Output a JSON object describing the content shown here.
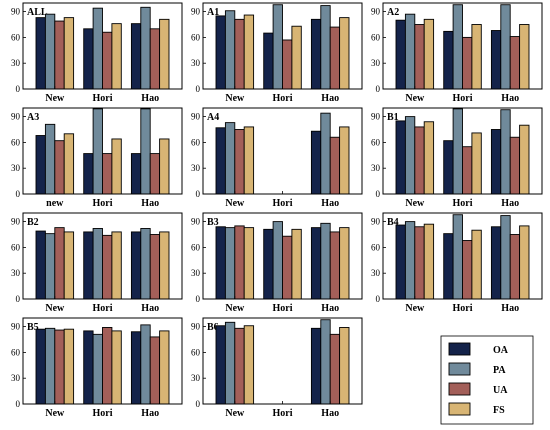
{
  "figure": {
    "yticks": [
      0,
      30,
      60,
      90
    ],
    "series_names": [
      "OA",
      "PA",
      "UA",
      "FS"
    ],
    "colors": {
      "OA": "#14234a",
      "PA": "#708a9b",
      "UA": "#a35f59",
      "FS": "#d8b574"
    }
  },
  "chart_data": [
    {
      "type": "bar",
      "title": "ALL",
      "categories": [
        "New",
        "Hori",
        "Hao"
      ],
      "ylim": [
        0,
        100
      ],
      "series": [
        {
          "name": "OA",
          "values": [
            83,
            70,
            76
          ]
        },
        {
          "name": "PA",
          "values": [
            87,
            94,
            95
          ]
        },
        {
          "name": "UA",
          "values": [
            79,
            66,
            70
          ]
        },
        {
          "name": "FS",
          "values": [
            83,
            76,
            81
          ]
        }
      ]
    },
    {
      "type": "bar",
      "title": "A1",
      "categories": [
        "New",
        "Hori",
        "Hao"
      ],
      "ylim": [
        0,
        100
      ],
      "series": [
        {
          "name": "OA",
          "values": [
            85,
            65,
            81
          ]
        },
        {
          "name": "PA",
          "values": [
            91,
            98,
            97
          ]
        },
        {
          "name": "UA",
          "values": [
            81,
            57,
            72
          ]
        },
        {
          "name": "FS",
          "values": [
            86,
            73,
            83
          ]
        }
      ]
    },
    {
      "type": "bar",
      "title": "A2",
      "categories": [
        "New",
        "Hori",
        "Hao"
      ],
      "ylim": [
        0,
        100
      ],
      "series": [
        {
          "name": "OA",
          "values": [
            80,
            67,
            68
          ]
        },
        {
          "name": "PA",
          "values": [
            87,
            98,
            98
          ]
        },
        {
          "name": "UA",
          "values": [
            75,
            60,
            61
          ]
        },
        {
          "name": "FS",
          "values": [
            81,
            75,
            75
          ]
        }
      ]
    },
    {
      "type": "bar",
      "title": "A3",
      "categories": [
        "new",
        "Hori",
        "Hao"
      ],
      "ylim": [
        0,
        100
      ],
      "series": [
        {
          "name": "OA",
          "values": [
            68,
            47,
            47
          ]
        },
        {
          "name": "PA",
          "values": [
            81,
            99,
            99
          ]
        },
        {
          "name": "UA",
          "values": [
            62,
            47,
            47
          ]
        },
        {
          "name": "FS",
          "values": [
            70,
            64,
            64
          ]
        }
      ]
    },
    {
      "type": "bar",
      "title": "A4",
      "categories": [
        "New",
        "Hori",
        "Hao"
      ],
      "ylim": [
        0,
        100
      ],
      "series": [
        {
          "name": "OA",
          "values": [
            77,
            null,
            73
          ]
        },
        {
          "name": "PA",
          "values": [
            83,
            null,
            94
          ]
        },
        {
          "name": "UA",
          "values": [
            75,
            null,
            66
          ]
        },
        {
          "name": "FS",
          "values": [
            78,
            null,
            78
          ]
        }
      ]
    },
    {
      "type": "bar",
      "title": "B1",
      "categories": [
        "New",
        "Hori",
        "Hao"
      ],
      "ylim": [
        0,
        100
      ],
      "series": [
        {
          "name": "OA",
          "values": [
            85,
            62,
            75
          ]
        },
        {
          "name": "PA",
          "values": [
            90,
            99,
            98
          ]
        },
        {
          "name": "UA",
          "values": [
            78,
            55,
            66
          ]
        },
        {
          "name": "FS",
          "values": [
            84,
            71,
            80
          ]
        }
      ]
    },
    {
      "type": "bar",
      "title": "B2",
      "categories": [
        "New",
        "Hori",
        "Hao"
      ],
      "ylim": [
        0,
        100
      ],
      "series": [
        {
          "name": "OA",
          "values": [
            79,
            78,
            78
          ]
        },
        {
          "name": "PA",
          "values": [
            76,
            82,
            82
          ]
        },
        {
          "name": "UA",
          "values": [
            83,
            74,
            75
          ]
        },
        {
          "name": "FS",
          "values": [
            78,
            78,
            78
          ]
        }
      ]
    },
    {
      "type": "bar",
      "title": "B3",
      "categories": [
        "New",
        "Hori",
        "Hao"
      ],
      "ylim": [
        0,
        100
      ],
      "series": [
        {
          "name": "OA",
          "values": [
            84,
            81,
            83
          ]
        },
        {
          "name": "PA",
          "values": [
            83,
            90,
            88
          ]
        },
        {
          "name": "UA",
          "values": [
            85,
            73,
            78
          ]
        },
        {
          "name": "FS",
          "values": [
            83,
            81,
            83
          ]
        }
      ]
    },
    {
      "type": "bar",
      "title": "B4",
      "categories": [
        "New",
        "Hori",
        "Hao"
      ],
      "ylim": [
        0,
        100
      ],
      "series": [
        {
          "name": "OA",
          "values": [
            86,
            76,
            84
          ]
        },
        {
          "name": "PA",
          "values": [
            90,
            98,
            97
          ]
        },
        {
          "name": "UA",
          "values": [
            84,
            68,
            75
          ]
        },
        {
          "name": "FS",
          "values": [
            87,
            80,
            85
          ]
        }
      ]
    },
    {
      "type": "bar",
      "title": "B5",
      "categories": [
        "New",
        "Hori",
        "Hao"
      ],
      "ylim": [
        0,
        100
      ],
      "series": [
        {
          "name": "OA",
          "values": [
            87,
            85,
            84
          ]
        },
        {
          "name": "PA",
          "values": [
            88,
            81,
            92
          ]
        },
        {
          "name": "UA",
          "values": [
            86,
            89,
            78
          ]
        },
        {
          "name": "FS",
          "values": [
            87,
            85,
            85
          ]
        }
      ]
    },
    {
      "type": "bar",
      "title": "B6",
      "categories": [
        "New",
        "Hori",
        "Hao"
      ],
      "ylim": [
        0,
        100
      ],
      "series": [
        {
          "name": "OA",
          "values": [
            91,
            null,
            88
          ]
        },
        {
          "name": "PA",
          "values": [
            95,
            null,
            98
          ]
        },
        {
          "name": "UA",
          "values": [
            88,
            null,
            81
          ]
        },
        {
          "name": "FS",
          "values": [
            91,
            null,
            89
          ]
        }
      ]
    }
  ]
}
